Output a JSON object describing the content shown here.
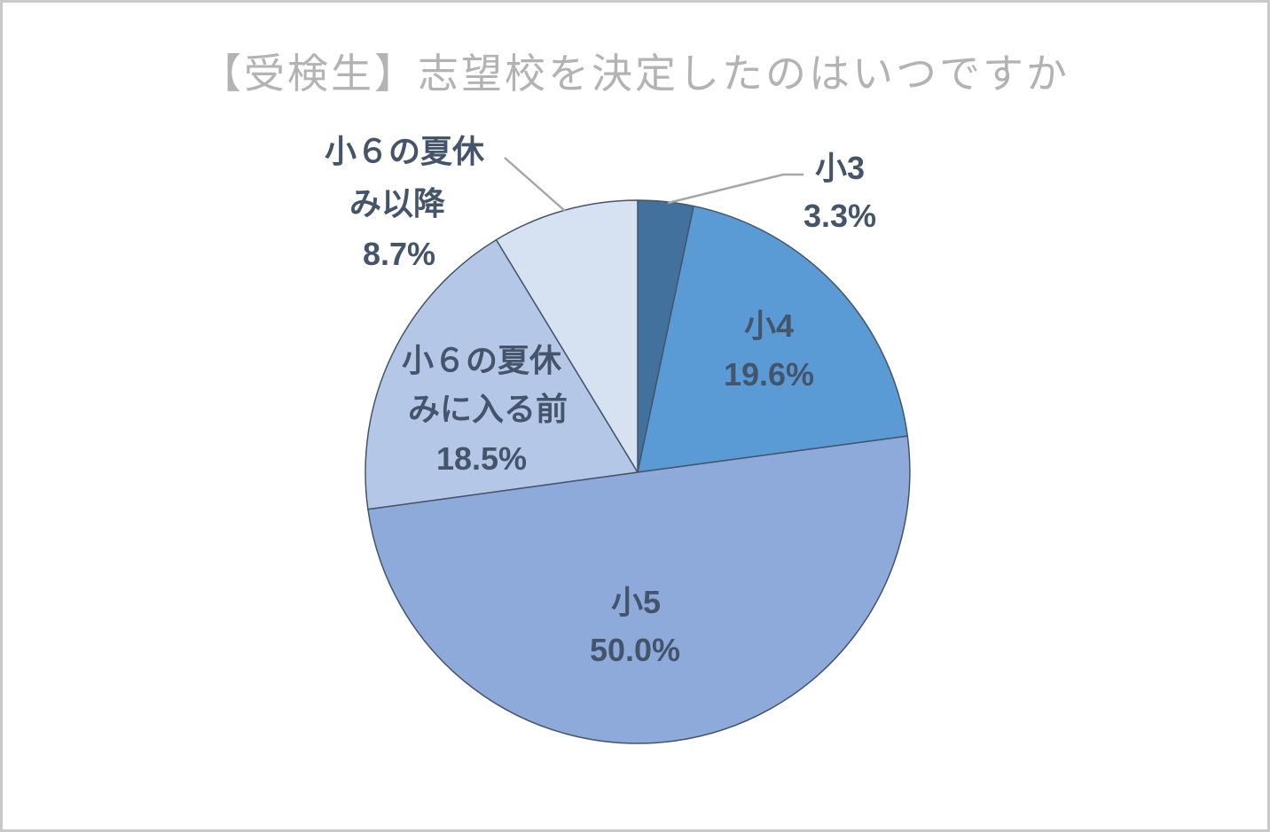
{
  "title": "【受検生】志望校を決定したのはいつですか",
  "chart_data": {
    "type": "pie",
    "title": "【受検生】志望校を決定したのはいつですか",
    "categories": [
      "小3",
      "小4",
      "小5",
      "小６の夏休みに入る前",
      "小６の夏休み以降"
    ],
    "values": [
      3.3,
      19.6,
      50.0,
      18.5,
      8.7
    ],
    "unit": "%",
    "colors": [
      "#41719c",
      "#5b9bd5",
      "#8eaadb",
      "#b4c7e7",
      "#d6e2f1"
    ],
    "slice_border_color": "#44546a",
    "leader_line_color": "#a6a6a6",
    "label_color": "#44546a",
    "title_color": "#b3b3b3",
    "start_angle": 0,
    "direction": "clockwise",
    "legend_position": "none",
    "data_labels": [
      {
        "category": "小3",
        "percent": "3.3%",
        "placement": "outside-top-right"
      },
      {
        "category": "小4",
        "percent": "19.6%",
        "placement": "inside"
      },
      {
        "category": "小5",
        "percent": "50.0%",
        "placement": "inside"
      },
      {
        "category": "小６の夏休みに入る前",
        "percent": "18.5%",
        "placement": "inside"
      },
      {
        "category": "小６の夏休み以降",
        "percent": "8.7%",
        "placement": "outside-top-left"
      }
    ]
  },
  "labels": {
    "sho3": {
      "name": "小3",
      "value": "3.3%"
    },
    "sho4": {
      "name": "小4",
      "value": "19.6%"
    },
    "sho5": {
      "name": "小5",
      "value": "50.0%"
    },
    "sho6_before": {
      "line1": "小６の夏休",
      "line2": "みに入る前",
      "value": "18.5%"
    },
    "sho6_after": {
      "line1": "小６の夏休",
      "line2": "み以降",
      "value": "8.7%"
    }
  }
}
